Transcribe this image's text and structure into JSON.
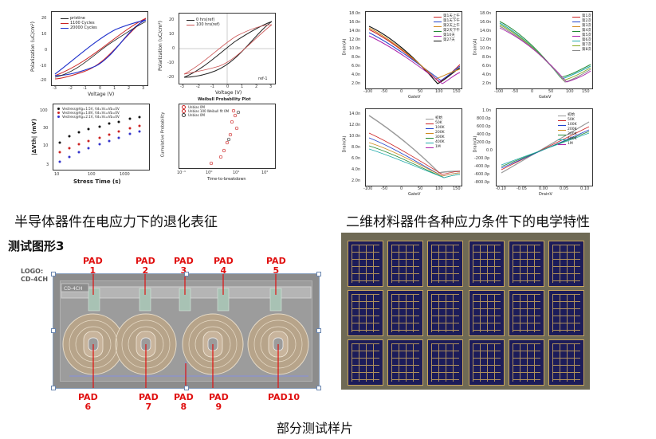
{
  "captions": {
    "left": "半导体器件在电应力下的退化表征",
    "right": "二维材料器件各种应力条件下的电学特性",
    "bottom": "部分测试样片"
  },
  "test_pattern": {
    "title": "测试图形3",
    "logo_line1": "LOGO:",
    "logo_line2": "CD-4CH",
    "chip_label": "CD-4CH",
    "pads_top": [
      {
        "name": "PAD",
        "num": "1"
      },
      {
        "name": "PAD",
        "num": "2"
      },
      {
        "name": "PAD",
        "num": "3"
      },
      {
        "name": "PAD",
        "num": "4"
      },
      {
        "name": "PAD",
        "num": "5"
      }
    ],
    "pads_bottom": [
      {
        "name": "PAD",
        "num": "6"
      },
      {
        "name": "PAD",
        "num": "7"
      },
      {
        "name": "PAD",
        "num": "8"
      },
      {
        "name": "PAD",
        "num": "9"
      },
      {
        "name": "PAD10",
        "num": ""
      }
    ]
  },
  "plots": {
    "hysteresis": {
      "ylabel": "Polarization (uC/cm²)",
      "xlabel": "Voltage (V)",
      "legend": [
        "pristine",
        "1100 Cycles",
        "20000 Cycles"
      ],
      "legend_colors": [
        "#222222",
        "#cc2222",
        "#2233cc"
      ],
      "xticks": [
        "-3",
        "-2",
        "-1",
        "0",
        "1",
        "2",
        "3"
      ],
      "yticks": [
        "20",
        "10",
        "0",
        "-10",
        "-20"
      ]
    },
    "hysteresis2": {
      "ylabel": "Polarization (uC/cm²)",
      "xlabel": "Voltage (V)",
      "legend": [
        "0 hrs(ref)",
        "100 hrs(ref)"
      ],
      "legend_colors": [
        "#222222",
        "#cc5555"
      ],
      "corner": "ref-1",
      "xticks": [
        "-3",
        "-2",
        "-1",
        "0",
        "1",
        "2",
        "3"
      ],
      "yticks": [
        "20",
        "10",
        "0",
        "-10",
        "-20"
      ]
    },
    "stress": {
      "ylabel": "|ΔVth| (mV)",
      "xlabel": "Stress Time (s)",
      "legend": [
        "Vestress@Vg=1.5V, Vd=Vs=Vb=0V",
        "Vestress@Vg=1.8V, Vd=Vs=Vb=0V",
        "Vestress@Vg=2.1V, Vd=Vs=Vb=0V"
      ],
      "legend_colors": [
        "#111111",
        "#cc2222",
        "#3333cc"
      ],
      "xticks": [
        "10",
        "100",
        "1000"
      ],
      "yticks": [
        "100",
        "30",
        "10",
        "3"
      ]
    },
    "weibull": {
      "title": "Weibull Probability Plot",
      "ylabel": "Cumulative Probability",
      "xlabel": "Time-to-breakdown",
      "legend": [
        "Unbias 0M",
        "Unbias 100 Weibull fit 0M",
        "Unbias 0M"
      ],
      "legend_colors": [
        "#cc2222",
        "#cc2222",
        "#333333"
      ],
      "xticks": [
        "10⁻¹",
        "10⁰",
        "10¹",
        "10²"
      ]
    },
    "iv1": {
      "ylabel": "Drain(A)",
      "xlabel": "GateV",
      "legend": [
        "第1天上午",
        "第1天下午",
        "第2天上午",
        "第2天下午",
        "第10天",
        "第27天"
      ],
      "legend_colors": [
        "#cc2222",
        "#2244cc",
        "#d08a20",
        "#228833",
        "#aa22aa",
        "#111111"
      ],
      "xticks": [
        "-100",
        "-50",
        "0",
        "50",
        "100",
        "150"
      ],
      "yticks": [
        "18.0n",
        "16.0n",
        "14.0n",
        "12.0n",
        "10.0n",
        "8.0n",
        "6.0n",
        "4.0n",
        "2.0n"
      ]
    },
    "iv2": {
      "ylabel": "Drain(A)",
      "xlabel": "GateV",
      "legend": [
        "第1次",
        "第2次",
        "第3次",
        "第4次",
        "第5次",
        "第6次",
        "第7次",
        "第8次"
      ],
      "legend_colors": [
        "#cc2222",
        "#2244cc",
        "#d08a20",
        "#228833",
        "#aa22aa",
        "#22aaaa",
        "#88aa22",
        "#888888"
      ],
      "xticks": [
        "-100",
        "-50",
        "0",
        "50",
        "100",
        "150"
      ],
      "yticks": [
        "18.0n",
        "16.0n",
        "14.0n",
        "12.0n",
        "10.0n",
        "8.0n",
        "6.0n",
        "4.0n",
        "2.0n"
      ]
    },
    "iv3": {
      "ylabel": "Drain(A)",
      "xlabel": "GateV",
      "legend": [
        "初始",
        "50K",
        "100K",
        "200K",
        "300K",
        "400K",
        "1M"
      ],
      "legend_colors": [
        "#999999",
        "#cc2222",
        "#2244cc",
        "#d08a20",
        "#228833",
        "#22aaaa",
        "#aa22aa"
      ],
      "xticks": [
        "-100",
        "-50",
        "0",
        "50",
        "100",
        "150"
      ],
      "yticks": [
        "14.0n",
        "12.0n",
        "10.0n",
        "8.0n",
        "6.0n",
        "4.0n",
        "2.0n"
      ]
    },
    "iv4": {
      "ylabel": "Drain(A)",
      "xlabel": "DrainV",
      "legend": [
        "初始",
        "50K",
        "100K",
        "200K",
        "300K",
        "400K",
        "1M"
      ],
      "legend_colors": [
        "#999999",
        "#cc2222",
        "#2244cc",
        "#d08a20",
        "#228833",
        "#22aaaa",
        "#aa22aa"
      ],
      "xticks": [
        "-0.10",
        "-0.05",
        "0.00",
        "0.05",
        "0.10"
      ],
      "yticks": [
        "1.0n",
        "800.0p",
        "600.0p",
        "400.0p",
        "200.0p",
        "0.0",
        "-200.0p",
        "-400.0p",
        "-600.0p",
        "-800.0p"
      ]
    }
  }
}
